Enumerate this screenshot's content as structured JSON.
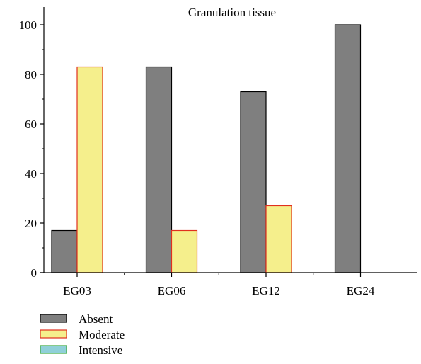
{
  "chart_data": {
    "type": "bar",
    "title": "Granulation tissue",
    "categories": [
      "EG03",
      "EG06",
      "EG12",
      "EG24"
    ],
    "series": [
      {
        "name": "Absent",
        "values": [
          17,
          83,
          73,
          100
        ],
        "color": "#7f7f7f",
        "stroke": "#000000"
      },
      {
        "name": "Moderate",
        "values": [
          83,
          17,
          27,
          0
        ],
        "color": "#f5ef8c",
        "stroke": "#e0301e"
      },
      {
        "name": "Intensive",
        "values": [
          0,
          0,
          0,
          0
        ],
        "color": "#8fd0d8",
        "stroke": "#3aa83a"
      }
    ],
    "ylim": [
      0,
      100
    ],
    "yticks": [
      0,
      20,
      40,
      60,
      80,
      100
    ],
    "xlabel": "",
    "ylabel": "",
    "grid": false,
    "legend": "bottom-left"
  }
}
